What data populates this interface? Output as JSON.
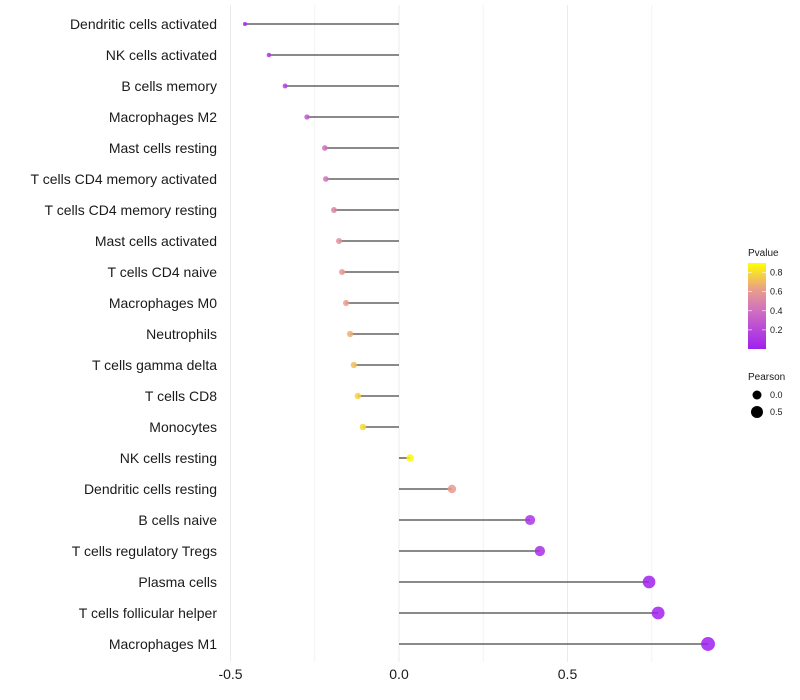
{
  "chart_data": {
    "type": "lollipop",
    "title": "",
    "xlabel": "",
    "ylabel": "",
    "xlim": [
      -0.5,
      0.95
    ],
    "xticks": [
      -0.5,
      0.0,
      0.5
    ],
    "xtick_labels": [
      "-0.5",
      "0.0",
      "0.5"
    ],
    "grid": true,
    "categories": [
      "Dendritic cells activated",
      "NK cells activated",
      "B cells memory",
      "Macrophages M2",
      "Mast cells resting",
      "T cells CD4 memory activated",
      "T cells CD4 memory resting",
      "Mast cells activated",
      "T cells CD4 naive",
      "Macrophages M0",
      "Neutrophils",
      "T cells gamma delta",
      "T cells CD8",
      "Monocytes",
      "NK cells resting",
      "Dendritic cells resting",
      "B cells naive",
      "T cells regulatory  Tregs",
      "Plasma cells",
      "T cells follicular helper",
      "Macrophages M1"
    ],
    "pearson": [
      -0.457,
      -0.386,
      -0.338,
      -0.273,
      -0.22,
      -0.217,
      -0.193,
      -0.178,
      -0.169,
      -0.157,
      -0.145,
      -0.134,
      -0.122,
      -0.107,
      0.033,
      0.157,
      0.389,
      0.418,
      0.742,
      0.769,
      0.917
    ],
    "pvalue": [
      0.02,
      0.12,
      0.15,
      0.28,
      0.4,
      0.42,
      0.5,
      0.55,
      0.6,
      0.62,
      0.67,
      0.72,
      0.77,
      0.8,
      0.88,
      0.6,
      0.1,
      0.07,
      0.01,
      0.005,
      0.001
    ],
    "legend": {
      "color": {
        "title": "Pvalue",
        "ticks": [
          "0.2",
          "0.4",
          "0.6",
          "0.8"
        ],
        "low": "#a020f0",
        "high": "#ffff00",
        "placement": "right"
      },
      "size": {
        "title": "Pearson",
        "ticks": [
          "0.0",
          "0.5"
        ],
        "placement": "right"
      }
    }
  }
}
